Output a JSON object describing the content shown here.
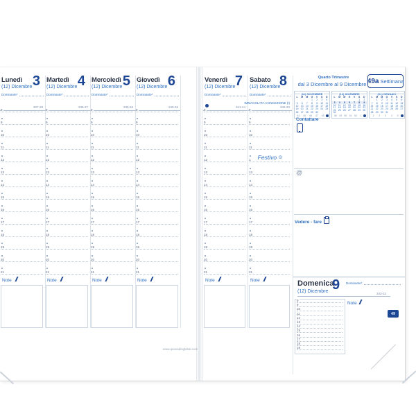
{
  "meta": {
    "website": "www.quovadisglobal.com",
    "edge_tab_week": "49",
    "accent_navy": "#1c4693",
    "accent_blue": "#2e6fc0"
  },
  "common": {
    "month_label": "(12) Dicembre",
    "dominante_label": "Dominante*",
    "note_label": "Note",
    "hours": [
      "8",
      "9",
      "10",
      "11",
      "12",
      "13",
      "14",
      "15",
      "16",
      "17",
      "18",
      "19",
      "20",
      "21"
    ]
  },
  "left_page": {
    "days": [
      {
        "name": "Lunedì",
        "day_number": "3",
        "day_count": "337-28"
      },
      {
        "name": "Martedì",
        "day_number": "4",
        "day_count": "338-27"
      },
      {
        "name": "Mercoledì",
        "day_number": "5",
        "day_count": "339-26"
      },
      {
        "name": "Giovedì",
        "day_number": "6",
        "day_count": "340-25"
      }
    ]
  },
  "right_page": {
    "days": [
      {
        "name": "Venerdì",
        "day_number": "7",
        "day_count": "341-24",
        "moon_phase": "new-moon"
      },
      {
        "name": "Sabato",
        "day_number": "8",
        "day_count": "342-23",
        "holiday": "IMMACOLATA CONCEZIONE (I)",
        "festivo_label": "Festivo"
      }
    ],
    "sidebar": {
      "quarter_label": "Quarto Trimestre",
      "range_label": "dal 3 Dicembre al 9 Dicembre",
      "week_number": "49a",
      "week_word": "Settimana",
      "contact_label": "Contattare",
      "email_symbol": "@",
      "todo_label": "Vedere - fare"
    },
    "mini_calendars": [
      {
        "title": "(11) NOVEMBRE",
        "dow": [
          "L",
          "M",
          "M",
          "G",
          "V",
          "S",
          "D"
        ],
        "rows": [
          [
            "",
            "",
            "",
            "1",
            "2",
            "3",
            "4"
          ],
          [
            "5",
            "6",
            "7",
            "8",
            "9",
            "10",
            "11"
          ],
          [
            "12",
            "13",
            "14",
            "15",
            "16",
            "17",
            "18"
          ],
          [
            "19",
            "20",
            "21",
            "22",
            "23",
            "24",
            "25"
          ],
          [
            "26",
            "27",
            "28",
            "29",
            "30",
            "",
            ""
          ]
        ],
        "week_numbers": [
          "44",
          "45",
          "46",
          "47",
          "48"
        ],
        "highlight_row": -1
      },
      {
        "title": "(12) DICEMBRE",
        "dow": [
          "L",
          "M",
          "M",
          "G",
          "V",
          "S",
          "D"
        ],
        "rows": [
          [
            "",
            "",
            "",
            "",
            "",
            "1",
            "2"
          ],
          [
            "3",
            "4",
            "5",
            "6",
            "7",
            "8",
            "9"
          ],
          [
            "10",
            "11",
            "12",
            "13",
            "14",
            "15",
            "16"
          ],
          [
            "17",
            "18",
            "19",
            "20",
            "21",
            "22",
            "23"
          ],
          [
            "24",
            "25",
            "26",
            "27",
            "28",
            "29",
            "30"
          ],
          [
            "31",
            "",
            "",
            "",
            "",
            "",
            ""
          ]
        ],
        "week_numbers": [
          "48",
          "49",
          "50",
          "51",
          "52",
          "1"
        ],
        "highlight_row": 1
      },
      {
        "title": "(01) GENNAIO",
        "dow": [
          "L",
          "M",
          "M",
          "G",
          "V",
          "S",
          "D"
        ],
        "rows": [
          [
            "",
            "1",
            "2",
            "3",
            "4",
            "5",
            "6"
          ],
          [
            "7",
            "8",
            "9",
            "10",
            "11",
            "12",
            "13"
          ],
          [
            "14",
            "15",
            "16",
            "17",
            "18",
            "19",
            "20"
          ],
          [
            "21",
            "22",
            "23",
            "24",
            "25",
            "26",
            "27"
          ],
          [
            "28",
            "29",
            "30",
            "31",
            "",
            "",
            ""
          ]
        ],
        "week_numbers": [
          "1",
          "2",
          "3",
          "4",
          "5"
        ],
        "highlight_row": -1
      }
    ],
    "domenica": {
      "name": "Domenica",
      "day_number": "9",
      "day_count": "343-22",
      "hours": [
        "8",
        "9",
        "10",
        "11",
        "12",
        "13",
        "14",
        "15",
        "16",
        "17",
        "18",
        "19"
      ]
    }
  }
}
